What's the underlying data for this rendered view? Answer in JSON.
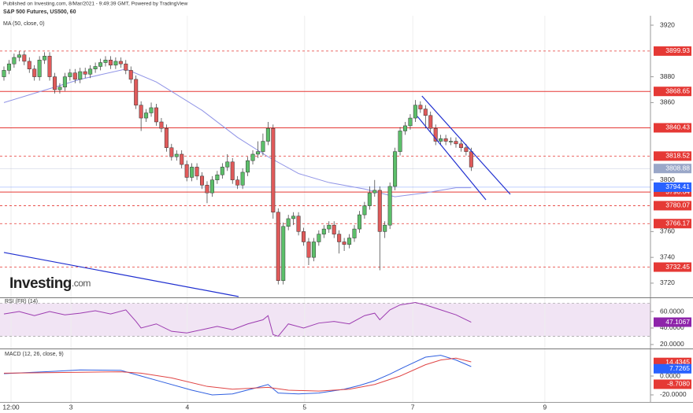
{
  "header": {
    "published": "Published on Investing.com, 8/Mar/2021 - 9:49:39 GMT, Powered by TradingView"
  },
  "logo": {
    "name": "Investing",
    "suffix": ".com"
  },
  "chart_data": [
    {
      "type": "candlestick",
      "title": "S&P 500 Futures, US500, 60",
      "x": [
        0,
        1,
        2,
        3,
        4,
        5,
        6,
        7,
        8,
        9,
        10,
        11,
        12,
        13,
        14,
        15,
        16,
        17,
        18,
        19,
        20,
        21,
        22,
        23,
        24,
        25,
        26,
        27,
        28,
        29,
        30,
        31,
        32,
        33,
        34,
        35,
        36,
        37,
        38,
        39,
        40,
        41,
        42,
        43,
        44,
        45,
        46,
        47,
        48,
        49,
        50,
        51,
        52,
        53,
        54,
        55,
        56,
        57,
        58,
        59,
        60,
        61,
        62,
        63,
        64,
        65,
        66,
        67,
        68,
        69,
        70,
        71,
        72,
        73,
        74,
        75,
        76,
        77,
        78,
        79,
        80,
        81,
        82,
        83,
        84,
        85,
        86,
        87,
        88,
        89,
        90,
        91,
        92
      ],
      "open": [
        3880,
        3885,
        3890,
        3895,
        3897,
        3892,
        3886,
        3880,
        3893,
        3896,
        3880,
        3870,
        3872,
        3880,
        3883,
        3878,
        3884,
        3882,
        3886,
        3888,
        3891,
        3893,
        3889,
        3892,
        3890,
        3885,
        3878,
        3858,
        3848,
        3852,
        3856,
        3845,
        3840,
        3825,
        3818,
        3820,
        3812,
        3802,
        3810,
        3803,
        3796,
        3790,
        3800,
        3804,
        3810,
        3814,
        3800,
        3796,
        3806,
        3815,
        3820,
        3822,
        3830,
        3840,
        3775,
        3722,
        3764,
        3770,
        3772,
        3760,
        3752,
        3740,
        3752,
        3758,
        3762,
        3765,
        3758,
        3752,
        3750,
        3755,
        3762,
        3773,
        3780,
        3790,
        3792,
        3760,
        3765,
        3795,
        3822,
        3838,
        3842,
        3848,
        3858,
        3855,
        3850,
        3840,
        3830,
        3832,
        3830,
        3830,
        3828,
        3825,
        3822
      ],
      "high": [
        3888,
        3893,
        3898,
        3900,
        3900,
        3895,
        3889,
        3896,
        3899,
        3899,
        3883,
        3875,
        3883,
        3886,
        3886,
        3887,
        3887,
        3889,
        3891,
        3894,
        3896,
        3896,
        3895,
        3895,
        3893,
        3888,
        3881,
        3861,
        3855,
        3860,
        3859,
        3848,
        3843,
        3828,
        3823,
        3823,
        3815,
        3813,
        3813,
        3806,
        3799,
        3803,
        3807,
        3813,
        3820,
        3817,
        3803,
        3809,
        3818,
        3823,
        3830,
        3836,
        3845,
        3843,
        3778,
        3767,
        3773,
        3775,
        3775,
        3763,
        3755,
        3755,
        3761,
        3765,
        3768,
        3768,
        3761,
        3755,
        3758,
        3765,
        3776,
        3783,
        3795,
        3800,
        3795,
        3768,
        3798,
        3825,
        3841,
        3845,
        3851,
        3862,
        3861,
        3858,
        3853,
        3843,
        3835,
        3835,
        3833,
        3833,
        3831,
        3828,
        3825
      ],
      "low": [
        3877,
        3882,
        3887,
        3892,
        3889,
        3883,
        3877,
        3877,
        3890,
        3877,
        3867,
        3867,
        3869,
        3877,
        3875,
        3875,
        3879,
        3879,
        3883,
        3885,
        3888,
        3886,
        3886,
        3887,
        3882,
        3875,
        3855,
        3838,
        3845,
        3849,
        3842,
        3837,
        3822,
        3815,
        3815,
        3809,
        3799,
        3799,
        3800,
        3793,
        3782,
        3787,
        3797,
        3801,
        3807,
        3797,
        3793,
        3793,
        3803,
        3812,
        3817,
        3819,
        3827,
        3770,
        3719,
        3719,
        3761,
        3765,
        3757,
        3749,
        3734,
        3737,
        3749,
        3755,
        3759,
        3755,
        3743,
        3745,
        3747,
        3752,
        3759,
        3770,
        3777,
        3787,
        3730,
        3755,
        3762,
        3792,
        3819,
        3835,
        3839,
        3845,
        3852,
        3840,
        3837,
        3827,
        3827,
        3827,
        3827,
        3825,
        3822,
        3819,
        3807
      ],
      "close": [
        3885,
        3890,
        3895,
        3897,
        3892,
        3886,
        3880,
        3893,
        3896,
        3880,
        3870,
        3872,
        3880,
        3883,
        3878,
        3884,
        3882,
        3886,
        3888,
        3891,
        3893,
        3889,
        3892,
        3890,
        3885,
        3878,
        3858,
        3848,
        3852,
        3856,
        3845,
        3840,
        3825,
        3818,
        3820,
        3812,
        3802,
        3810,
        3803,
        3796,
        3790,
        3800,
        3804,
        3810,
        3814,
        3800,
        3796,
        3806,
        3815,
        3820,
        3822,
        3830,
        3840,
        3775,
        3722,
        3764,
        3770,
        3772,
        3760,
        3752,
        3740,
        3752,
        3758,
        3762,
        3765,
        3758,
        3752,
        3750,
        3755,
        3762,
        3773,
        3780,
        3790,
        3792,
        3760,
        3765,
        3795,
        3822,
        3838,
        3842,
        3848,
        3858,
        3855,
        3850,
        3840,
        3830,
        3832,
        3830,
        3830,
        3828,
        3825,
        3822,
        3810
      ],
      "up_color": "#5cbf6a",
      "down_color": "#e05a5a",
      "ma": {
        "name": "MA (50, close, 0)",
        "color": "#8f93e6",
        "x": [
          0,
          15,
          24,
          30,
          39,
          46,
          52,
          58,
          64,
          71,
          77,
          83,
          89,
          92
        ],
        "values": [
          3860,
          3878,
          3886,
          3876,
          3854,
          3833,
          3818,
          3805,
          3798,
          3793,
          3787,
          3790,
          3794,
          3794
        ]
      },
      "trendline_color": "#1f2fd0",
      "trendlines": [
        {
          "x": [
            82.3,
            99.7
          ],
          "y": [
            3865.1,
            3788.9
          ]
        },
        {
          "x": [
            81.4,
            94.9
          ],
          "y": [
            3849.3,
            3784.6
          ]
        },
        {
          "x": [
            0,
            46.2
          ],
          "y": [
            3743.8,
            3709.6
          ]
        }
      ],
      "level_color": "#e53935",
      "levels": [
        {
          "value": 3899.93,
          "style": "dashed"
        },
        {
          "value": 3868.65,
          "style": "solid"
        },
        {
          "value": 3840.43,
          "style": "solid"
        },
        {
          "value": 3818.52,
          "style": "dashed"
        },
        {
          "value": 3790.64,
          "style": "solid"
        },
        {
          "value": 3780.07,
          "style": "dashed"
        },
        {
          "value": 3766.17,
          "style": "dashed"
        },
        {
          "value": 3732.45,
          "style": "dashed"
        }
      ],
      "price_labels": [
        {
          "value": 3808.88,
          "color": "#9aa7c8"
        },
        {
          "value": 3794.41,
          "color": "#2962ff"
        }
      ],
      "ylim": [
        3709.6,
        3926.1
      ],
      "yticks": [
        3720,
        3740,
        3760,
        3800,
        3860,
        3880,
        3920
      ],
      "xlim": [
        0,
        127.3
      ],
      "xticks": [
        {
          "value": 1.4,
          "label": "12:00"
        },
        {
          "value": 13.2,
          "label": "3"
        },
        {
          "value": 36.1,
          "label": "4"
        },
        {
          "value": 59.2,
          "label": "5"
        },
        {
          "value": 80.5,
          "label": "7"
        },
        {
          "value": 106.5,
          "label": "9"
        }
      ]
    },
    {
      "type": "line",
      "title": "RSI (FR) (14)",
      "band": [
        30,
        70
      ],
      "band_color": "#f1e4f4",
      "series": [
        {
          "color": "#9c3bb0",
          "x": [
            0,
            3,
            6,
            9,
            12,
            15,
            18,
            21,
            24,
            26,
            27,
            30,
            33,
            36,
            39,
            42,
            45,
            48,
            51,
            52,
            53,
            54,
            56,
            59,
            62,
            65,
            68,
            71,
            73,
            74,
            76,
            78,
            81,
            83,
            86,
            89,
            92
          ],
          "values": [
            57,
            60,
            55,
            60,
            56,
            58,
            61,
            57,
            62,
            48,
            40,
            45,
            36,
            34,
            38,
            42,
            38,
            45,
            50,
            55,
            32,
            30,
            45,
            40,
            46,
            48,
            45,
            55,
            58,
            50,
            62,
            68,
            71,
            68,
            62,
            56,
            47.1
          ]
        }
      ],
      "value_labels": [
        {
          "value": 47.1067,
          "color": "#8e24aa"
        }
      ],
      "ylim": [
        17.1,
        74.3
      ],
      "yticks": [
        {
          "value": 20,
          "label": "20.0000"
        },
        {
          "value": 40,
          "label": "40.0000"
        },
        {
          "value": 60,
          "label": "60.0000"
        }
      ],
      "xlim": [
        0,
        127.3
      ]
    },
    {
      "type": "line",
      "title": "MACD (12, 26, close, 9)",
      "series": [
        {
          "color": "#2f5fe0",
          "x": [
            0,
            10,
            15,
            23,
            27,
            31,
            37,
            41,
            45,
            50,
            52,
            54,
            58,
            62,
            67,
            70,
            73,
            76,
            79,
            83,
            86,
            89,
            92
          ],
          "values": [
            2.5,
            5,
            6.5,
            6,
            0,
            -6,
            -15,
            -20,
            -19,
            -12,
            -9,
            -18,
            -19,
            -18,
            -14,
            -10,
            -5,
            2,
            10,
            20,
            22,
            17,
            10
          ]
        },
        {
          "color": "#e04545",
          "x": [
            0,
            15,
            23,
            27,
            33,
            40,
            45,
            52,
            56,
            62,
            68,
            73,
            78,
            83,
            86,
            89,
            92
          ],
          "values": [
            3,
            4,
            4.5,
            3,
            -2,
            -11,
            -14,
            -12,
            -15,
            -16,
            -14,
            -9,
            0,
            12,
            17,
            19,
            15
          ]
        }
      ],
      "value_labels": [
        {
          "value": 14.4345,
          "color": "#e53935"
        },
        {
          "value": 7.7265,
          "color": "#2962ff"
        },
        {
          "value": -8.708,
          "label": "-8.7080",
          "color": "#e53935"
        }
      ],
      "ylim": [
        -26.7,
        26.7
      ],
      "yticks": [
        {
          "value": -20,
          "label": "-20.0000"
        },
        {
          "value": 0,
          "label": "0.0000"
        }
      ],
      "xlim": [
        0,
        127.3
      ]
    }
  ]
}
